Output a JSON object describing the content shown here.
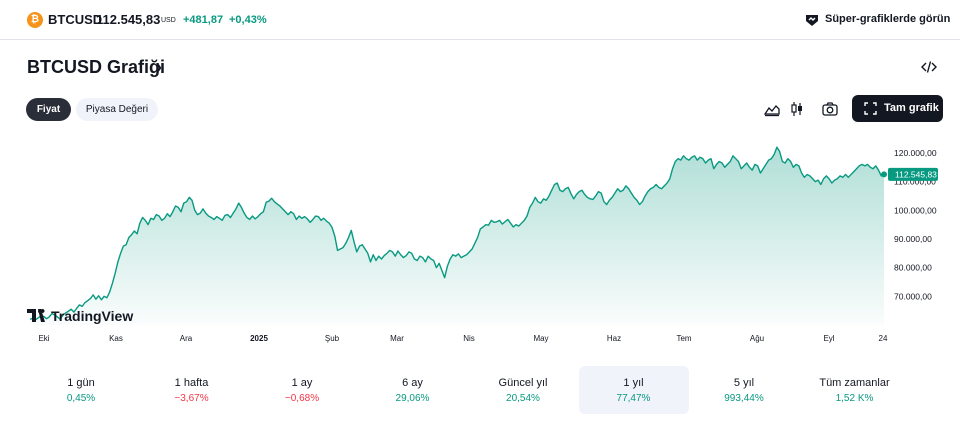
{
  "header": {
    "symbol_icon": "bitcoin-icon",
    "symbol": "BTCUSD",
    "price": "112.545,83",
    "currency": "USD",
    "change": "+481,87",
    "change_percent": "+0,43%",
    "super_icon": "supercharts-icon",
    "super_link": "Süper-grafiklerde görün"
  },
  "title": {
    "text": "BTCUSD Grafiği",
    "chevron": "›"
  },
  "toolbar": {
    "tabs": [
      {
        "label": "Fiyat",
        "active": true
      },
      {
        "label": "Piyasa Değeri",
        "active": false
      }
    ],
    "area_icon": "area-chart-icon",
    "candle_icon": "candlestick-icon",
    "camera_icon": "camera-icon",
    "fullscreen_label": "Tam grafik",
    "fullscreen_icon": "fullscreen-icon"
  },
  "chart_data": {
    "type": "area",
    "title": "",
    "xlabel": "",
    "ylabel": "",
    "x_ticks": [
      "Eki",
      "Kas",
      "Ara",
      "2025",
      "Şub",
      "Mar",
      "Nis",
      "May",
      "Haz",
      "Tem",
      "Ağu",
      "Eyl",
      "24"
    ],
    "y_ticks": [
      "120.000,00",
      "110.000,00",
      "100.000,00",
      "90.000,00",
      "80.000,00",
      "70.000,00"
    ],
    "y_tick_values": [
      120000,
      110000,
      100000,
      90000,
      80000,
      70000
    ],
    "ylim": [
      60000,
      128000
    ],
    "last_price_label": "112.545,83",
    "last_price": 112545.83,
    "line_color": "#089981",
    "grid": false,
    "values": [
      62000,
      62300,
      61800,
      62500,
      63200,
      63000,
      62200,
      62800,
      64000,
      63500,
      62800,
      62000,
      63500,
      64200,
      64800,
      65500,
      64500,
      65800,
      67000,
      66500,
      67800,
      68500,
      69200,
      70500,
      69000,
      70200,
      68800,
      70000,
      69500,
      71500,
      74500,
      78000,
      82000,
      85000,
      87500,
      88000,
      90500,
      91500,
      92800,
      91800,
      95500,
      97500,
      96500,
      95000,
      97200,
      96800,
      98500,
      98000,
      96500,
      97200,
      98800,
      97800,
      99500,
      101500,
      101000,
      99500,
      102500,
      103000,
      104500,
      103500,
      100000,
      98500,
      99000,
      100500,
      99000,
      98000,
      97500,
      96800,
      97800,
      97200,
      96500,
      98200,
      98500,
      97500,
      99000,
      100500,
      102500,
      101000,
      99000,
      97500,
      96800,
      98000,
      97000,
      97800,
      98800,
      99500,
      102800,
      103200,
      104200,
      103000,
      102200,
      101500,
      100500,
      99500,
      98500,
      99500,
      98800,
      96800,
      98000,
      97200,
      97800,
      97000,
      95800,
      96800,
      98000,
      97800,
      96500,
      97200,
      96200,
      95500,
      94000,
      91000,
      86000,
      86500,
      87000,
      88500,
      90500,
      93000,
      89000,
      85500,
      87500,
      88000,
      86500,
      85000,
      82000,
      84500,
      82500,
      84000,
      83000,
      84200,
      85000,
      86000,
      85500,
      84000,
      85800,
      84500,
      83500,
      84200,
      85500,
      85000,
      83000,
      82500,
      84000,
      83500,
      82000,
      84000,
      83000,
      82500,
      80000,
      81500,
      79000,
      76500,
      80500,
      83000,
      84500,
      84000,
      84800,
      83500,
      84000,
      84500,
      85500,
      86500,
      88500,
      90500,
      93500,
      94200,
      95000,
      94800,
      96500,
      95800,
      96000,
      96500,
      95200,
      96000,
      96800,
      95500,
      94200,
      95000,
      94500,
      95500,
      96500,
      98000,
      101000,
      102500,
      104500,
      103000,
      102500,
      104000,
      103500,
      105000,
      107000,
      109000,
      109500,
      107000,
      106500,
      107500,
      108000,
      105800,
      104000,
      105500,
      106500,
      107000,
      105500,
      104500,
      104000,
      103800,
      105000,
      106500,
      106000,
      103000,
      102000,
      103500,
      104500,
      106000,
      107500,
      106500,
      107000,
      108500,
      107500,
      106000,
      104500,
      103500,
      102000,
      103000,
      105000,
      106500,
      107500,
      108000,
      109000,
      108000,
      107500,
      108500,
      109500,
      111000,
      114500,
      117000,
      118000,
      117500,
      119000,
      118000,
      117500,
      118500,
      119000,
      117500,
      118500,
      118000,
      116500,
      117500,
      118000,
      114500,
      116000,
      117000,
      116500,
      115000,
      116000,
      117000,
      119000,
      118000,
      117000,
      114500,
      115500,
      116500,
      115000,
      114000,
      116000,
      115500,
      113000,
      114500,
      116000,
      117500,
      118000,
      119500,
      122000,
      120500,
      117000,
      116500,
      118000,
      117000,
      115000,
      116000,
      115500,
      113000,
      111500,
      112500,
      112000,
      111000,
      110000,
      110500,
      109000,
      111000,
      112000,
      111000,
      109500,
      110500,
      111000,
      112000,
      111500,
      112500,
      111500,
      112500,
      113500,
      114500,
      115500,
      116000,
      115500,
      116000,
      115000,
      114500,
      115500,
      114000,
      112000,
      112545
    ]
  },
  "periods": [
    {
      "label": "1 gün",
      "value": "0,45%",
      "positive": true,
      "selected": false
    },
    {
      "label": "1 hafta",
      "value": "−3,67%",
      "positive": false,
      "selected": false
    },
    {
      "label": "1 ay",
      "value": "−0,68%",
      "positive": false,
      "selected": false
    },
    {
      "label": "6 ay",
      "value": "29,06%",
      "positive": true,
      "selected": false
    },
    {
      "label": "Güncel yıl",
      "value": "20,54%",
      "positive": true,
      "selected": false
    },
    {
      "label": "1 yıl",
      "value": "77,47%",
      "positive": true,
      "selected": true
    },
    {
      "label": "5 yıl",
      "value": "993,44%",
      "positive": true,
      "selected": false
    },
    {
      "label": "Tüm zamanlar",
      "value": "1,52 K%",
      "positive": true,
      "selected": false
    }
  ],
  "logo": {
    "text": "TradingView"
  }
}
